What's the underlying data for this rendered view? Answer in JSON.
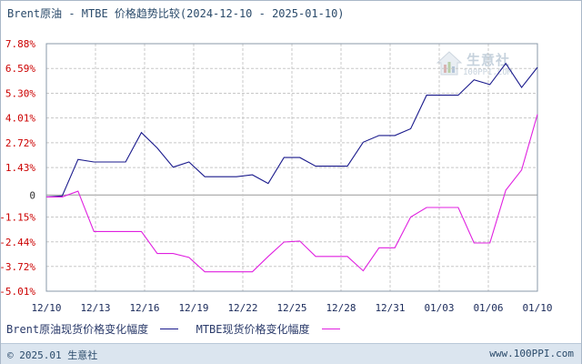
{
  "title": "Brent原油 - MTBE 价格趋势比较(2024-12-10 - 2025-01-10)",
  "watermark": {
    "name": "生意社",
    "site": "100PPI.COM"
  },
  "footer": {
    "left": "© 2025.01 生意社",
    "right": "www.100PPI.com"
  },
  "colors": {
    "series1": "#1a1a8c",
    "series2": "#e020e0",
    "positive_tick": "#cc0000",
    "negative_tick": "#cc0000",
    "zero_tick": "#333333",
    "grid": "#c8c8c8"
  },
  "chart_data": {
    "type": "line",
    "title": "Brent原油 - MTBE 价格趋势比较(2024-12-10 - 2025-01-10)",
    "xlabel": "",
    "ylabel": "",
    "x_tick_labels": [
      "12/10",
      "12/13",
      "12/16",
      "12/19",
      "12/22",
      "12/25",
      "12/28",
      "12/31",
      "01/03",
      "01/06",
      "01/10"
    ],
    "y_tick_labels": [
      "7.88%",
      "6.59%",
      "5.30%",
      "4.01%",
      "2.72%",
      "1.43%",
      "0",
      "-1.15%",
      "-2.44%",
      "-3.72%",
      "-5.01%"
    ],
    "y_tick_values": [
      7.88,
      6.59,
      5.3,
      4.01,
      2.72,
      1.43,
      0,
      -1.15,
      -2.44,
      -3.72,
      -5.01
    ],
    "ylim": [
      -5.01,
      7.88
    ],
    "xlim": [
      "2024-12-10",
      "2025-01-10"
    ],
    "grid": true,
    "legend_position": "bottom-left",
    "series": [
      {
        "name": "Brent原油现货价格变化幅度",
        "points": [
          [
            "2024-12-10",
            -0.1
          ],
          [
            "2024-12-11",
            -0.05
          ],
          [
            "2024-12-12",
            1.85
          ],
          [
            "2024-12-13",
            1.72
          ],
          [
            "2024-12-14",
            1.72
          ],
          [
            "2024-12-15",
            1.72
          ],
          [
            "2024-12-16",
            3.25
          ],
          [
            "2024-12-17",
            2.45
          ],
          [
            "2024-12-18",
            1.45
          ],
          [
            "2024-12-19",
            1.72
          ],
          [
            "2024-12-20",
            0.95
          ],
          [
            "2024-12-21",
            0.95
          ],
          [
            "2024-12-22",
            0.95
          ],
          [
            "2024-12-23",
            1.05
          ],
          [
            "2024-12-24",
            0.6
          ],
          [
            "2024-12-25",
            1.95
          ],
          [
            "2024-12-26",
            1.95
          ],
          [
            "2024-12-27",
            1.5
          ],
          [
            "2024-12-28",
            1.5
          ],
          [
            "2024-12-29",
            1.5
          ],
          [
            "2024-12-30",
            2.75
          ],
          [
            "2024-12-31",
            3.1
          ],
          [
            "2025-01-01",
            3.1
          ],
          [
            "2025-01-02",
            3.45
          ],
          [
            "2025-01-03",
            5.2
          ],
          [
            "2025-01-04",
            5.2
          ],
          [
            "2025-01-05",
            5.2
          ],
          [
            "2025-01-06",
            6.0
          ],
          [
            "2025-01-07",
            5.75
          ],
          [
            "2025-01-08",
            6.85
          ],
          [
            "2025-01-09",
            5.6
          ],
          [
            "2025-01-10",
            6.65
          ]
        ]
      },
      {
        "name": "MTBE现货价格变化幅度",
        "points": [
          [
            "2024-12-10",
            -0.1
          ],
          [
            "2024-12-11",
            -0.1
          ],
          [
            "2024-12-12",
            0.2
          ],
          [
            "2024-12-13",
            -1.9
          ],
          [
            "2024-12-14",
            -1.9
          ],
          [
            "2024-12-15",
            -1.9
          ],
          [
            "2024-12-16",
            -1.9
          ],
          [
            "2024-12-17",
            -3.05
          ],
          [
            "2024-12-18",
            -3.05
          ],
          [
            "2024-12-19",
            -3.25
          ],
          [
            "2024-12-20",
            -4.0
          ],
          [
            "2024-12-21",
            -4.0
          ],
          [
            "2024-12-22",
            -4.0
          ],
          [
            "2024-12-23",
            -4.0
          ],
          [
            "2024-12-24",
            -3.2
          ],
          [
            "2024-12-25",
            -2.45
          ],
          [
            "2024-12-26",
            -2.4
          ],
          [
            "2024-12-27",
            -3.2
          ],
          [
            "2024-12-28",
            -3.2
          ],
          [
            "2024-12-29",
            -3.2
          ],
          [
            "2024-12-30",
            -3.95
          ],
          [
            "2024-12-31",
            -2.75
          ],
          [
            "2025-01-01",
            -2.75
          ],
          [
            "2025-01-02",
            -1.15
          ],
          [
            "2025-01-03",
            -0.65
          ],
          [
            "2025-01-04",
            -0.65
          ],
          [
            "2025-01-05",
            -0.65
          ],
          [
            "2025-01-06",
            -2.5
          ],
          [
            "2025-01-07",
            -2.5
          ],
          [
            "2025-01-08",
            0.25
          ],
          [
            "2025-01-09",
            1.3
          ],
          [
            "2025-01-10",
            4.2
          ]
        ]
      }
    ]
  }
}
